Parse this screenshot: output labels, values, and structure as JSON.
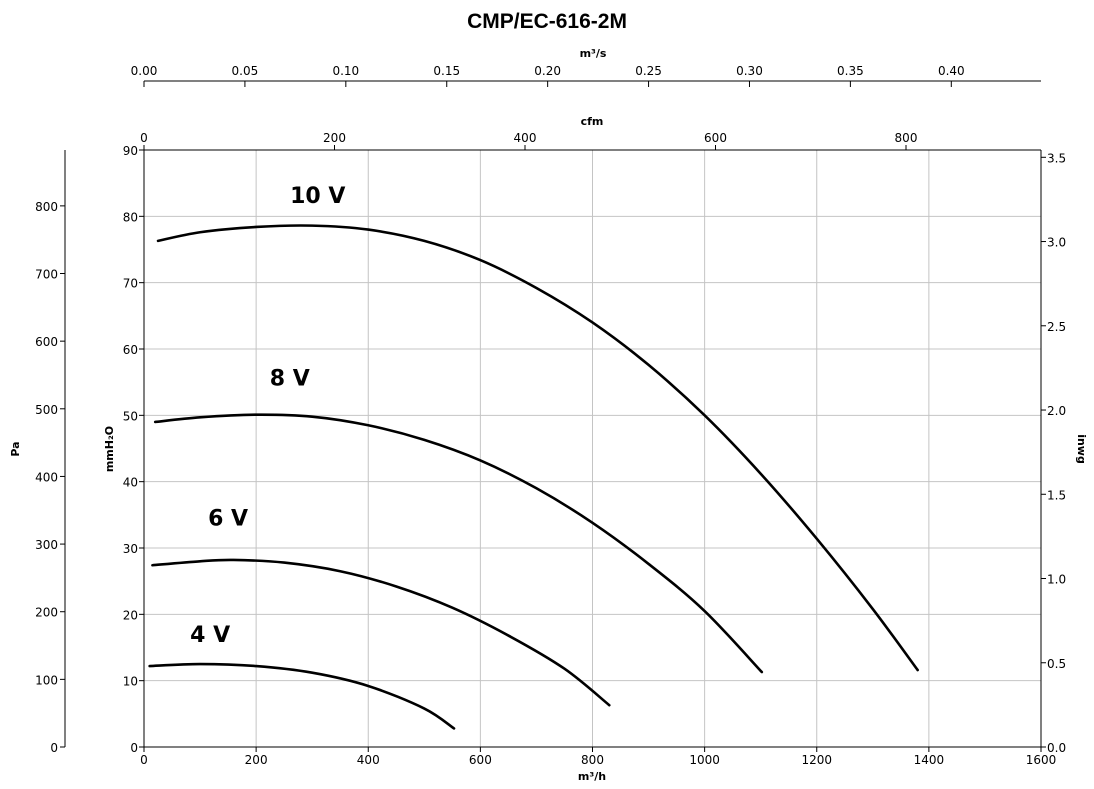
{
  "chart_data": {
    "type": "line",
    "title": "CMP/EC-616-2M",
    "x_primary": {
      "label": "m³/h",
      "range": [
        0,
        1600
      ],
      "ticks": [
        0,
        200,
        400,
        600,
        800,
        1000,
        1200,
        1400,
        1600
      ]
    },
    "x_top_cfm": {
      "label": "cfm",
      "ticks": [
        0,
        200,
        400,
        600,
        800
      ]
    },
    "x_top_m3s": {
      "label": "m³/s",
      "ticks": [
        "0.00",
        "0.05",
        "0.10",
        "0.15",
        "0.20",
        "0.25",
        "0.30",
        "0.35",
        "0.40"
      ]
    },
    "y_primary": {
      "label": "mmH₂O",
      "range": [
        0,
        90
      ],
      "ticks": [
        0,
        10,
        20,
        30,
        40,
        50,
        60,
        70,
        80,
        90
      ]
    },
    "y_left_pa": {
      "label": "Pa",
      "ticks": [
        0,
        100,
        200,
        300,
        400,
        500,
        600,
        700,
        800
      ]
    },
    "y_right_inwg": {
      "label": "inwg",
      "ticks": [
        "0.0",
        "0.5",
        "1.0",
        "1.5",
        "2.0",
        "2.5",
        "3.0",
        "3.5"
      ]
    },
    "grid": true,
    "series": [
      {
        "name": "10 V",
        "label_at": [
          310,
          82
        ],
        "points": [
          [
            25,
            76.3
          ],
          [
            100,
            77.6
          ],
          [
            200,
            78.4
          ],
          [
            300,
            78.6
          ],
          [
            400,
            78.0
          ],
          [
            500,
            76.3
          ],
          [
            600,
            73.4
          ],
          [
            700,
            69.2
          ],
          [
            800,
            64.0
          ],
          [
            900,
            57.6
          ],
          [
            1000,
            50.0
          ],
          [
            1100,
            41.2
          ],
          [
            1200,
            31.4
          ],
          [
            1300,
            20.8
          ],
          [
            1380,
            11.6
          ]
        ]
      },
      {
        "name": "8 V",
        "label_at": [
          260,
          54.5
        ],
        "points": [
          [
            20,
            49.0
          ],
          [
            100,
            49.7
          ],
          [
            200,
            50.1
          ],
          [
            300,
            49.8
          ],
          [
            400,
            48.5
          ],
          [
            500,
            46.3
          ],
          [
            600,
            43.2
          ],
          [
            700,
            39.0
          ],
          [
            800,
            33.8
          ],
          [
            900,
            27.6
          ],
          [
            1000,
            20.5
          ],
          [
            1102,
            11.3
          ]
        ]
      },
      {
        "name": "6 V",
        "label_at": [
          150,
          33.4
        ],
        "points": [
          [
            15,
            27.4
          ],
          [
            100,
            28.0
          ],
          [
            160,
            28.2
          ],
          [
            250,
            27.8
          ],
          [
            350,
            26.5
          ],
          [
            450,
            24.2
          ],
          [
            550,
            21.0
          ],
          [
            650,
            16.8
          ],
          [
            750,
            11.8
          ],
          [
            830,
            6.3
          ]
        ]
      },
      {
        "name": "4 V",
        "label_at": [
          118,
          15.8
        ],
        "points": [
          [
            10,
            12.2
          ],
          [
            100,
            12.5
          ],
          [
            200,
            12.2
          ],
          [
            300,
            11.2
          ],
          [
            400,
            9.2
          ],
          [
            500,
            5.8
          ],
          [
            553,
            2.8
          ]
        ]
      }
    ]
  }
}
